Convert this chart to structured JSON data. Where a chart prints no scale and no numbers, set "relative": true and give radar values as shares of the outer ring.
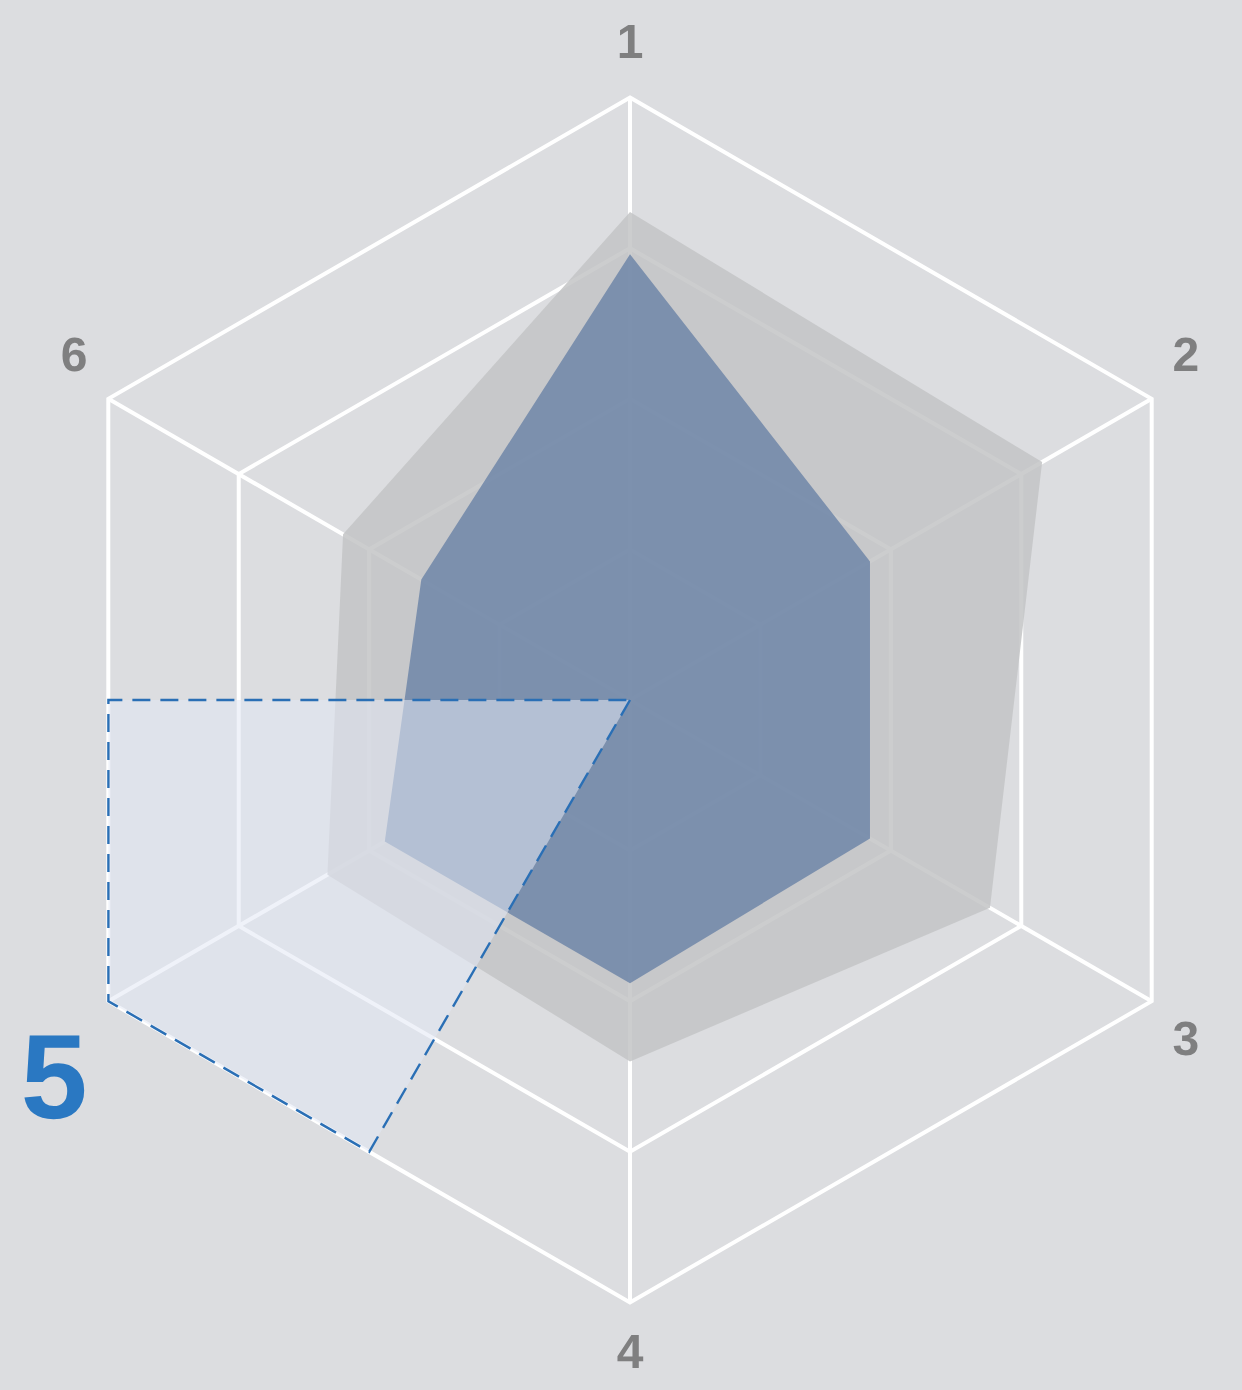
{
  "chart_data": {
    "type": "radar",
    "relative": true,
    "categories": [
      "1",
      "2",
      "3",
      "4",
      "5",
      "6"
    ],
    "series": [
      {
        "color": "#6f86a8",
        "values": [
          0.74,
          0.46,
          0.46,
          0.47,
          0.47,
          0.4
        ]
      },
      {
        "color": "#c3c4c6",
        "values": [
          0.81,
          0.79,
          0.69,
          0.6,
          0.58,
          0.55
        ]
      }
    ],
    "grid": true,
    "legend": false,
    "marker": "none"
  }
}
